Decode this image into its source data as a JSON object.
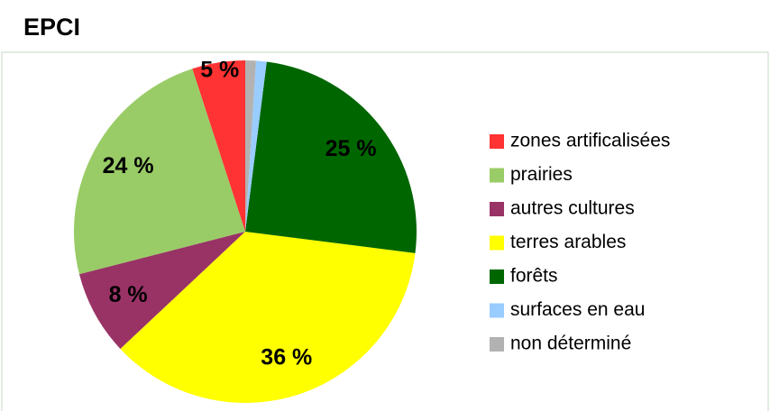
{
  "chart_data": {
    "type": "pie",
    "title": "EPCI",
    "categories": [
      "zones artificalisées",
      "prairies",
      "autres cultures",
      "terres arables",
      "forêts",
      "surfaces en eau",
      "non déterminé"
    ],
    "values": [
      5,
      24,
      8,
      36,
      25,
      1,
      1
    ],
    "value_labels": [
      "5 %",
      "24 %",
      "8 %",
      "36 %",
      "25 %",
      null,
      null
    ],
    "colors": [
      "#ff3333",
      "#99cc66",
      "#993366",
      "#ffff00",
      "#006600",
      "#99ccff",
      "#b2b2b2"
    ],
    "legend": "right"
  }
}
